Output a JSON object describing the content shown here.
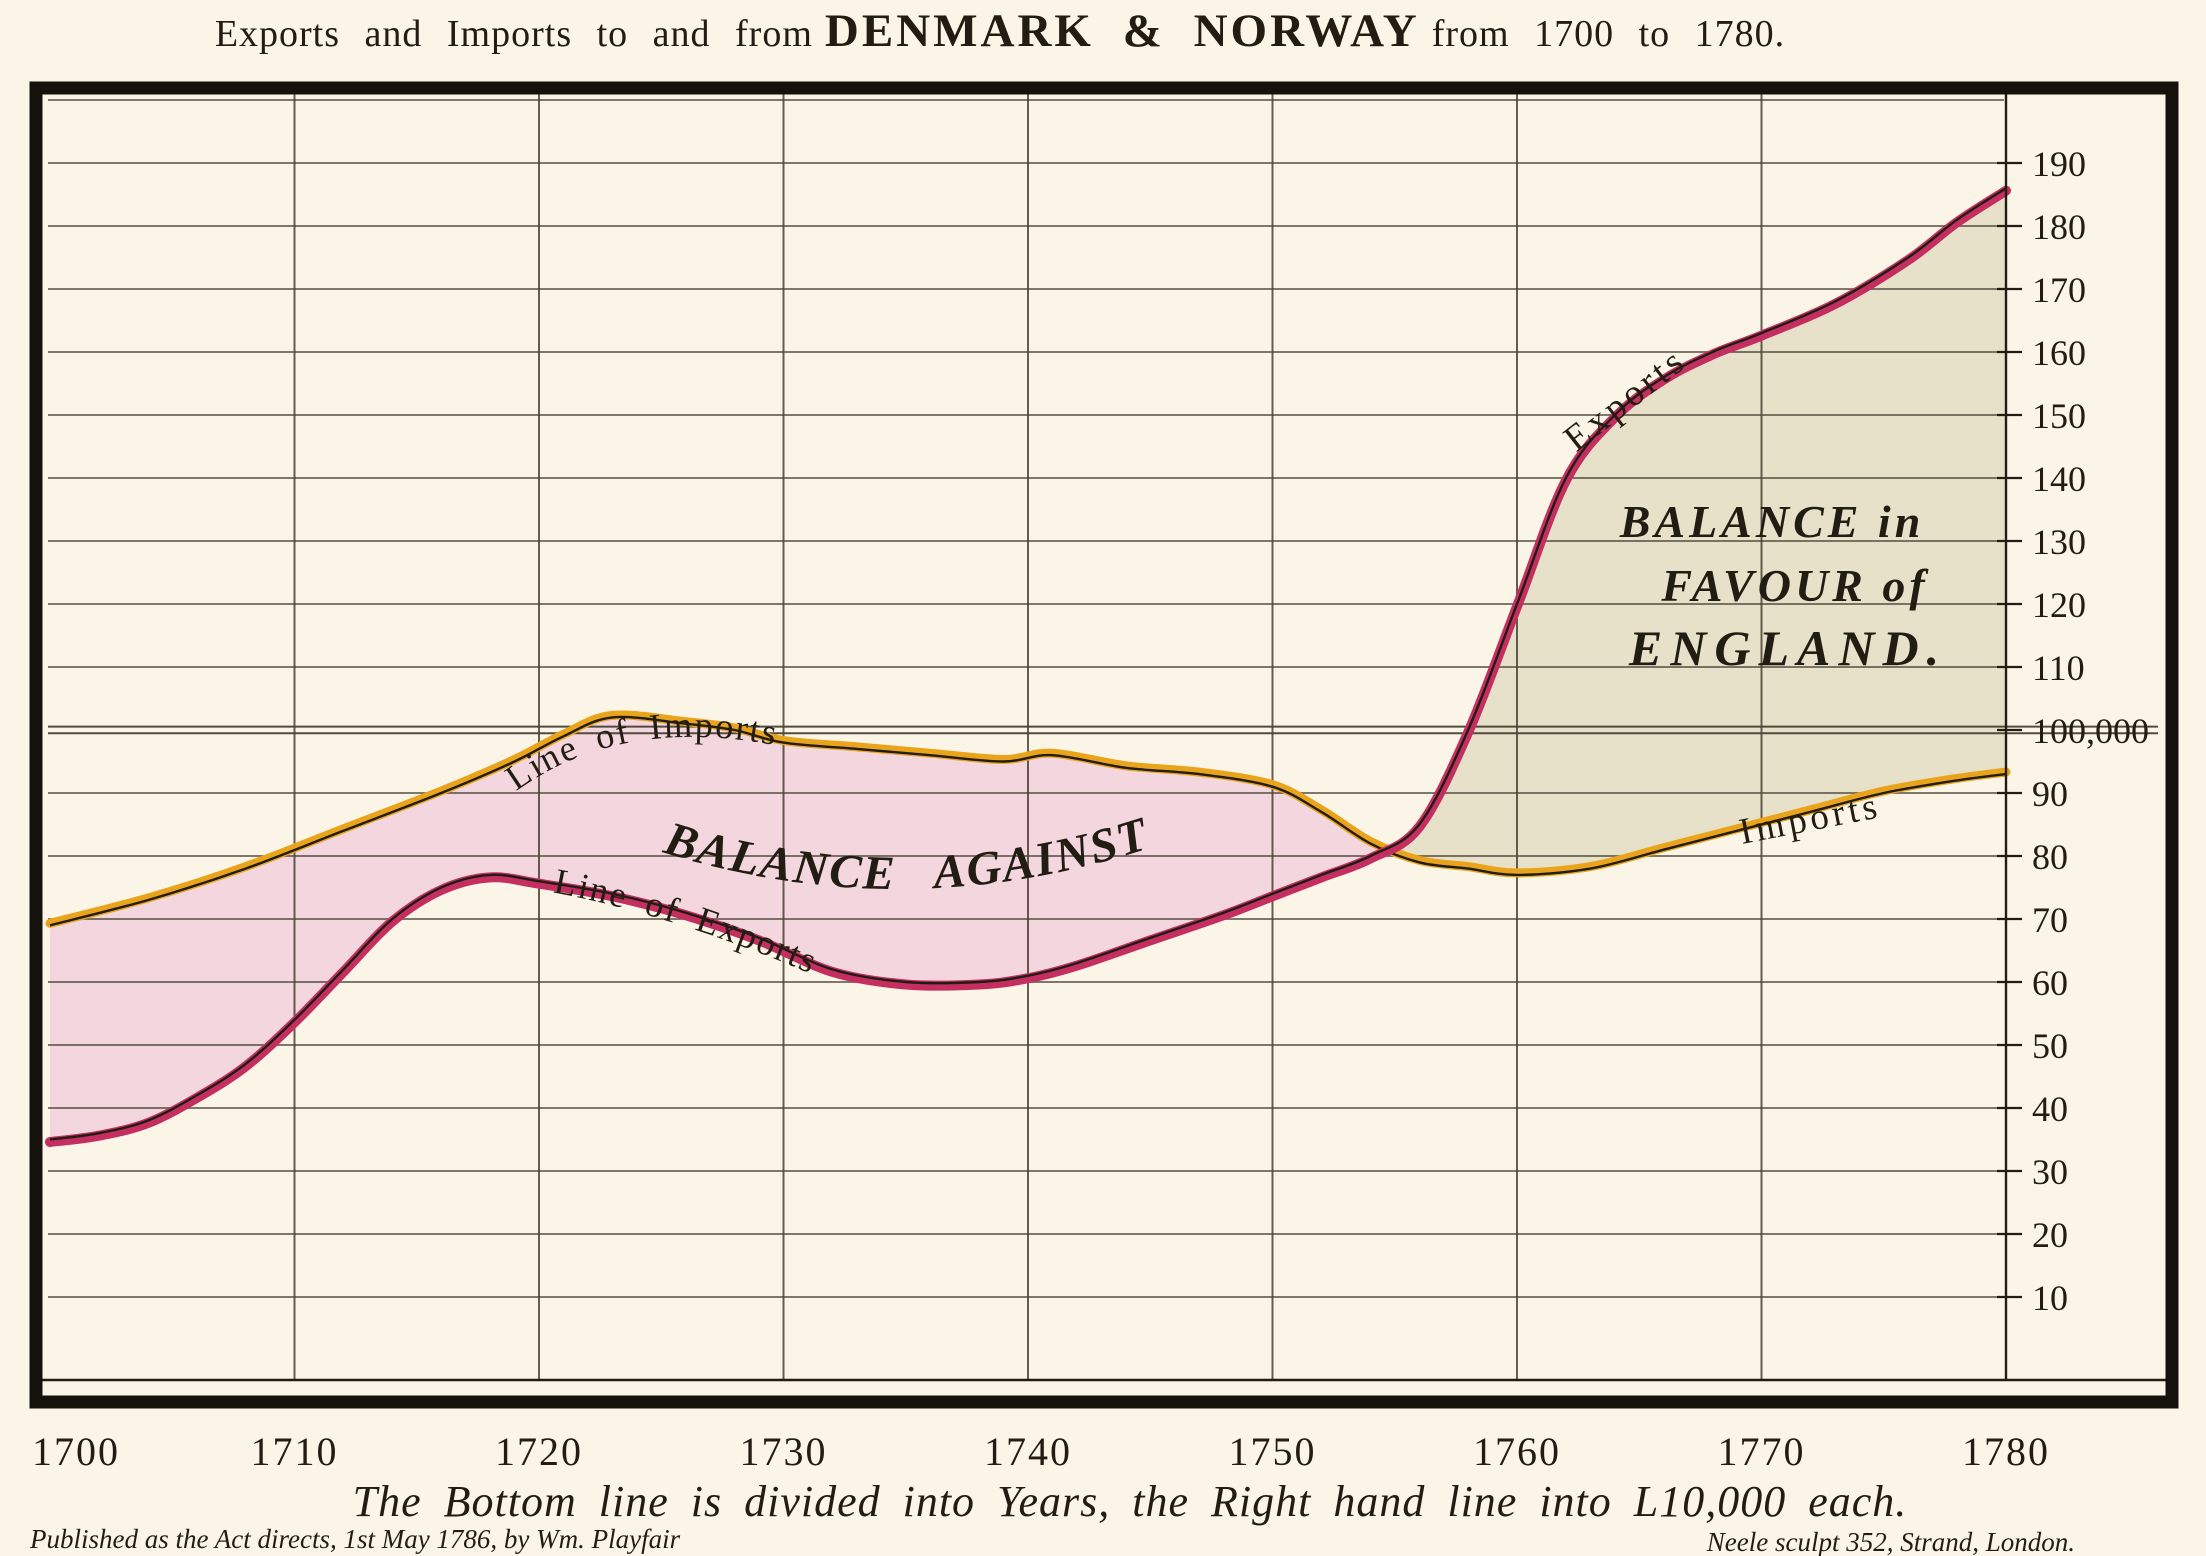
{
  "title": {
    "prefix": "Exports and Imports to and from",
    "emphasis": "DENMARK & NORWAY",
    "suffix": "from 1700 to 1780."
  },
  "annotations": {
    "line_of_imports": "Line of Imports",
    "line_of_exports": "Line of Exports",
    "balance_against": "BALANCE AGAINST",
    "balance_favour_line1": "BALANCE in",
    "balance_favour_line2": "FAVOUR of",
    "balance_favour_line3": "ENGLAND.",
    "exports_curve_tag": "Exports",
    "imports_curve_tag": "Imports"
  },
  "footer": {
    "caption": "The Bottom line is divided into Years, the Right hand line into L10,000 each.",
    "published": "Published as the Act directs, 1st May 1786, by Wm. Playfair",
    "engraver": "Neele sculpt 352, Strand, London."
  },
  "colors": {
    "background": "#faf5e7",
    "ink": "#211d12",
    "grid": "#4a4336",
    "frame": "#15120b",
    "imports_line": "#eaa41b",
    "exports_line": "#c42e61",
    "balance_against_fill": "#f3d6de",
    "balance_favour_fill": "#e7e1ca"
  },
  "chart_data": {
    "type": "area",
    "title": "Exports and Imports to and from DENMARK & NORWAY from 1700 to 1780.",
    "xlabel": "Years",
    "ylabel": "L10,000 each",
    "xlim": [
      1700,
      1780
    ],
    "ylim": [
      0,
      200
    ],
    "grid": "on",
    "x_ticks": [
      1700,
      1710,
      1720,
      1730,
      1740,
      1750,
      1760,
      1770,
      1780
    ],
    "y_grid": {
      "min": 10,
      "max": 200,
      "step": 10
    },
    "y_ticks": [
      {
        "value": 10,
        "label": "10"
      },
      {
        "value": 20,
        "label": "20"
      },
      {
        "value": 30,
        "label": "30"
      },
      {
        "value": 40,
        "label": "40"
      },
      {
        "value": 50,
        "label": "50"
      },
      {
        "value": 60,
        "label": "60"
      },
      {
        "value": 70,
        "label": "70"
      },
      {
        "value": 80,
        "label": "80"
      },
      {
        "value": 90,
        "label": "90"
      },
      {
        "value": 100,
        "label": "100,000"
      },
      {
        "value": 110,
        "label": "110"
      },
      {
        "value": 120,
        "label": "120"
      },
      {
        "value": 130,
        "label": "130"
      },
      {
        "value": 140,
        "label": "140"
      },
      {
        "value": 150,
        "label": "150"
      },
      {
        "value": 160,
        "label": "160"
      },
      {
        "value": 170,
        "label": "170"
      },
      {
        "value": 180,
        "label": "180"
      },
      {
        "value": 190,
        "label": "190"
      }
    ],
    "unit": "L10,000 per division of the right hand line",
    "series": [
      {
        "name": "Imports",
        "color": "#eaa41b",
        "points": [
          [
            1700,
            69
          ],
          [
            1704,
            73
          ],
          [
            1708,
            78
          ],
          [
            1712,
            84
          ],
          [
            1716,
            90
          ],
          [
            1719,
            95
          ],
          [
            1721,
            99
          ],
          [
            1723,
            102
          ],
          [
            1726,
            101
          ],
          [
            1728,
            100
          ],
          [
            1730,
            98
          ],
          [
            1733,
            97
          ],
          [
            1736,
            96
          ],
          [
            1739,
            95
          ],
          [
            1741,
            96
          ],
          [
            1744,
            94
          ],
          [
            1747,
            93
          ],
          [
            1750,
            91
          ],
          [
            1752,
            87
          ],
          [
            1754,
            82
          ],
          [
            1756,
            79
          ],
          [
            1758,
            78
          ],
          [
            1760,
            77
          ],
          [
            1763,
            78
          ],
          [
            1766,
            81
          ],
          [
            1769,
            84
          ],
          [
            1772,
            87
          ],
          [
            1775,
            90
          ],
          [
            1778,
            92
          ],
          [
            1780,
            93
          ]
        ]
      },
      {
        "name": "Exports",
        "color": "#c42e61",
        "points": [
          [
            1700,
            35
          ],
          [
            1702,
            36
          ],
          [
            1704,
            38
          ],
          [
            1706,
            42
          ],
          [
            1708,
            47
          ],
          [
            1710,
            54
          ],
          [
            1712,
            62
          ],
          [
            1714,
            70
          ],
          [
            1716,
            75
          ],
          [
            1718,
            77
          ],
          [
            1720,
            76
          ],
          [
            1723,
            74
          ],
          [
            1726,
            71
          ],
          [
            1729,
            67
          ],
          [
            1732,
            62
          ],
          [
            1735,
            60
          ],
          [
            1738,
            60
          ],
          [
            1740,
            61
          ],
          [
            1742,
            63
          ],
          [
            1745,
            67
          ],
          [
            1748,
            71
          ],
          [
            1750,
            74
          ],
          [
            1752,
            77
          ],
          [
            1754,
            80
          ],
          [
            1756,
            85
          ],
          [
            1758,
            100
          ],
          [
            1760,
            120
          ],
          [
            1762,
            140
          ],
          [
            1764,
            150
          ],
          [
            1766,
            156
          ],
          [
            1768,
            160
          ],
          [
            1770,
            163
          ],
          [
            1773,
            168
          ],
          [
            1776,
            175
          ],
          [
            1778,
            181
          ],
          [
            1780,
            186
          ]
        ]
      }
    ],
    "regions": [
      {
        "name": "BALANCE AGAINST",
        "between": "Imports over Exports, 1700 to ~1755",
        "fill": "#f3d6de"
      },
      {
        "name": "BALANCE in FAVOUR of ENGLAND",
        "between": "Exports over Imports, ~1755 to 1780",
        "fill": "#e7e1ca"
      }
    ]
  }
}
